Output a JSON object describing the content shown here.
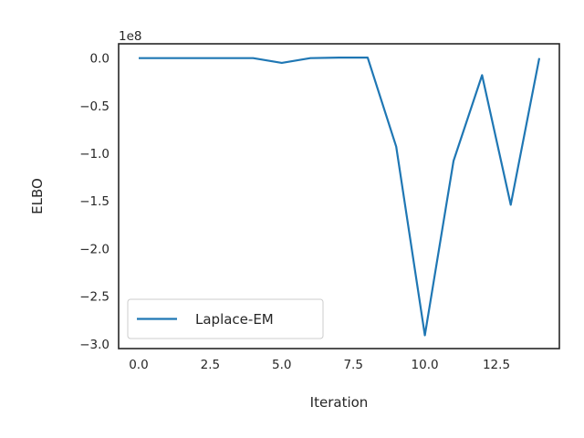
{
  "chart_data": {
    "type": "line",
    "xlabel": "Iteration",
    "ylabel": "ELBO",
    "offset_text": "1e8",
    "xlim": [
      -0.7,
      14.7
    ],
    "ylim": [
      -3.05,
      0.15
    ],
    "xticks": [
      0.0,
      2.5,
      5.0,
      7.5,
      10.0,
      12.5
    ],
    "xtick_labels": [
      "0.0",
      "2.5",
      "5.0",
      "7.5",
      "10.0",
      "12.5"
    ],
    "yticks": [
      0.0,
      -0.5,
      -1.0,
      -1.5,
      -2.0,
      -2.5,
      -3.0
    ],
    "ytick_labels": [
      "0.0",
      "−0.5",
      "−1.0",
      "−1.5",
      "−2.0",
      "−2.5",
      "−3.0"
    ],
    "grid": false,
    "legend_position": "lower-left",
    "series": [
      {
        "name": "Laplace-EM",
        "color": "#1f77b4",
        "x": [
          0,
          1,
          2,
          3,
          4,
          5,
          6,
          7,
          8,
          9,
          10,
          11,
          12,
          13,
          14
        ],
        "y": [
          0.0,
          0.0,
          0.0,
          0.0,
          0.0,
          -0.05,
          0.0,
          0.005,
          0.005,
          -0.93,
          -2.91,
          -1.08,
          -0.18,
          -1.54,
          0.0
        ]
      }
    ]
  }
}
